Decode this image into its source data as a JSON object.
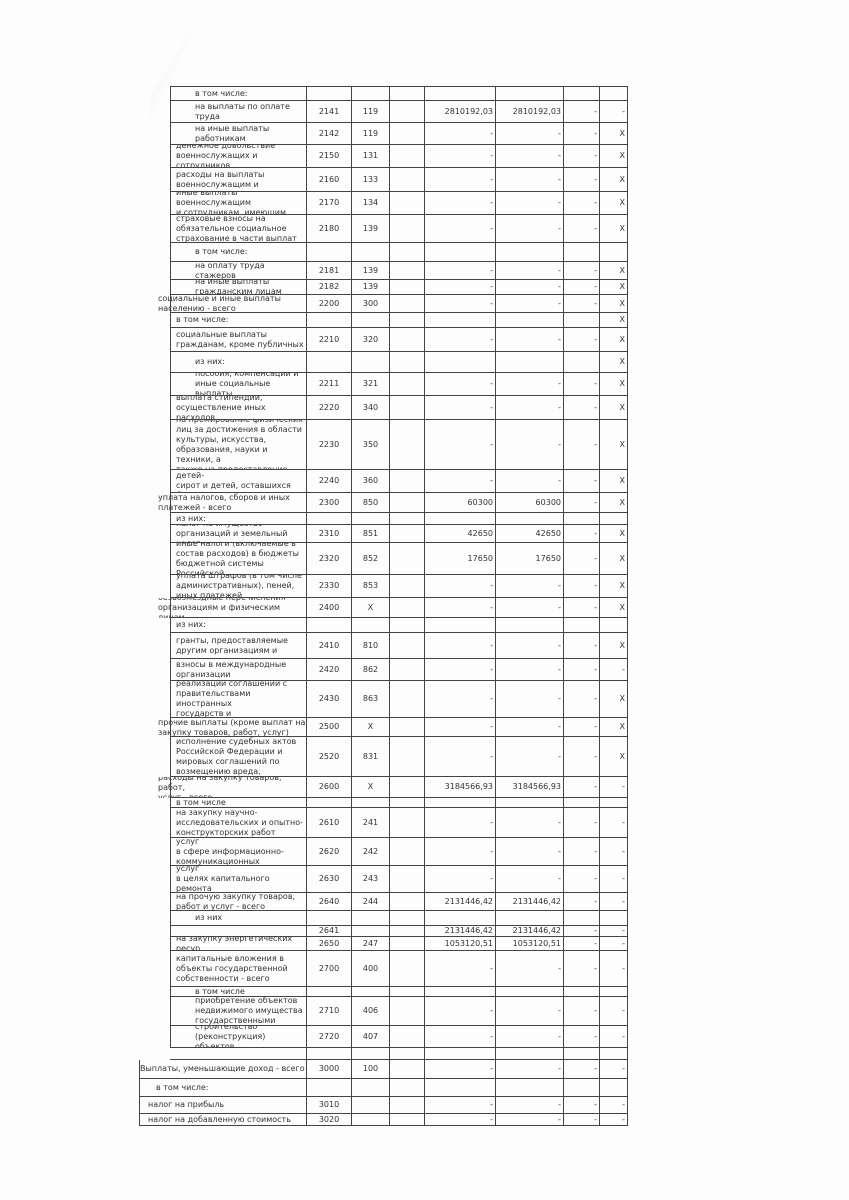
{
  "rows": [
    [
      "в том числе:",
      "",
      "",
      "",
      "",
      "",
      ""
    ],
    [
      "на выплаты по оплате\nтруда",
      "2141",
      "119",
      "2810192,03",
      "2810192,03",
      "-",
      "-"
    ],
    [
      "на иные выплаты\nработникам",
      "2142",
      "119",
      "-",
      "-",
      "-",
      "Х"
    ],
    [
      "денежное довольствие\nвоеннослужащих и сотрудников,",
      "2150",
      "131",
      "-",
      "-",
      "-",
      "Х"
    ],
    [
      "расходы на выплаты\nвоеннослужащим и",
      "2160",
      "133",
      "-",
      "-",
      "-",
      "Х"
    ],
    [
      "иные выплаты военнослужащим\nи сотрудникам, имеющим",
      "2170",
      "134",
      "-",
      "-",
      "-",
      "Х"
    ],
    [
      "страховые взносы на\nобязательное социальное\nстрахование в части выплат",
      "2180",
      "139",
      "-",
      "-",
      "-",
      "Х"
    ],
    [
      "в том числе:",
      "",
      "",
      "",
      "",
      "",
      ""
    ],
    [
      "на оплату труда стажеров",
      "2181",
      "139",
      "-",
      "-",
      "-",
      "Х"
    ],
    [
      "на иные выплаты\nгражданским лицам",
      "2182",
      "139",
      "-",
      "-",
      "-",
      "Х"
    ],
    [
      "социальные и иные выплаты\nнаселению - всего",
      "2200",
      "300",
      "-",
      "-",
      "-",
      "Х"
    ],
    [
      "в том числе:",
      "",
      "",
      "",
      "",
      "",
      "Х"
    ],
    [
      "социальные выплаты\nгражданам, кроме публичных",
      "2210",
      "320",
      "-",
      "-",
      "-",
      "Х"
    ],
    [
      "из них:",
      "",
      "",
      "",
      "",
      "",
      "Х"
    ],
    [
      "пособия, компенсации и\nиные социальные выплаты",
      "2211",
      "321",
      "-",
      "-",
      "-",
      "Х"
    ],
    [
      "выплата стипендий,\nосуществление иных расходов",
      "2220",
      "340",
      "-",
      "-",
      "-",
      "Х"
    ],
    [
      "на премирование физических\nлиц за достижения в области\nкультуры, искусства,\nобразования, науки и техники, а\nтакже на предоставление",
      "2230",
      "350",
      "-",
      "-",
      "-",
      "Х"
    ],
    [
      "социальное обеспечение детей-\nсирот и детей, оставшихся без",
      "2240",
      "360",
      "-",
      "-",
      "-",
      "Х"
    ],
    [
      "уплата налогов, сборов и иных\nплатежей - всего",
      "2300",
      "850",
      "60300",
      "60300",
      "-",
      "Х"
    ],
    [
      "из них:",
      "",
      "",
      "",
      "",
      "",
      ""
    ],
    [
      "налог на имущество\nорганизаций и земельный налог",
      "2310",
      "851",
      "42650",
      "42650",
      "-",
      "Х"
    ],
    [
      "иные налоги (включаемые в\nсостав расходов) в бюджеты\nбюджетной системы Российской",
      "2320",
      "852",
      "17650",
      "17650",
      "-",
      "Х"
    ],
    [
      "уплата штрафов (в том числе\nадминистративных), пеней,\nиных платежей",
      "2330",
      "853",
      "-",
      "-",
      "-",
      "Х"
    ],
    [
      "безвозмездные перечисления\nорганизациям и физическим лицам -",
      "2400",
      "Х",
      "-",
      "-",
      "-",
      "Х"
    ],
    [
      "из них:",
      "",
      "",
      "",
      "",
      "",
      ""
    ],
    [
      "гранты, предоставляемые\nдругим организациям и",
      "2410",
      "810",
      "-",
      "-",
      "-",
      "Х"
    ],
    [
      "взносы в международные\nорганизации",
      "2420",
      "862",
      "-",
      "-",
      "-",
      "-"
    ],
    [
      "платежи в целях обеспечения\nреализации соглашений с\nправительствами иностранных\nгосударств и международными",
      "2430",
      "863",
      "-",
      "-",
      "-",
      "Х"
    ],
    [
      "прочие выплаты (кроме выплат на\nзакупку товаров, работ, услуг)",
      "2500",
      "Х",
      "-",
      "-",
      "-",
      "Х"
    ],
    [
      "исполнение судебных актов\nРоссийской Федерации и\nмировых соглашений по\nвозмещению вреда,",
      "2520",
      "831",
      "-",
      "-",
      "-",
      "Х"
    ],
    [
      "расходы на закупку товаров, работ,\nуслуг - всего",
      "2600",
      "Х",
      "3184566,93",
      "3184566,93",
      "-",
      "-"
    ],
    [
      "в том числе",
      "",
      "",
      "",
      "",
      "",
      ""
    ],
    [
      "на закупку научно-\nисследовательских и опытно-\nконструкторских работ",
      "2610",
      "241",
      "-",
      "-",
      "-",
      "-"
    ],
    [
      "на закупку товаров, работ, услуг\nв сфере информационно-\nкоммуникационных технологий",
      "2620",
      "242",
      "-",
      "-",
      "-",
      "-"
    ],
    [
      "на закупку товаров, работ, услуг\nв целях капитального ремонта\nгосударственного имущества",
      "2630",
      "243",
      "-",
      "-",
      "-",
      "-"
    ],
    [
      "на прочую закупку товаров,\nработ и услуг - всего",
      "2640",
      "244",
      "2131446,42",
      "2131446,42",
      "-",
      "-"
    ],
    [
      "из них",
      "",
      "",
      "",
      "",
      "",
      ""
    ],
    [
      "",
      "2641",
      "",
      "2131446,42",
      "2131446,42",
      "-",
      "-"
    ],
    [
      "на закупку энергетических ресур",
      "2650",
      "247",
      "1053120,51",
      "1053120,51",
      "-",
      "-"
    ],
    [
      "капитальные вложения в\nобъекты государственной\nсобственности - всего",
      "2700",
      "400",
      "-",
      "-",
      "-",
      "-"
    ],
    [
      "в том числе",
      "",
      "",
      "",
      "",
      "",
      ""
    ],
    [
      "приобретение объектов\nнедвижимого имущества\nгосударственными",
      "2710",
      "406",
      "-",
      "-",
      "-",
      "-"
    ],
    [
      "строительство\n(реконструкция) объектов",
      "2720",
      "407",
      "-",
      "-",
      "-",
      "-"
    ],
    [
      "",
      "",
      "",
      "",
      "",
      "",
      ""
    ],
    [
      "Выплаты, уменьшающие доход - всего",
      "3000",
      "100",
      "-",
      "-",
      "-",
      "-"
    ],
    [
      "в том числе:",
      "",
      "",
      "",
      "",
      "",
      ""
    ],
    [
      "налог на прибыль",
      "3010",
      "",
      "-",
      "-",
      "-",
      "-"
    ],
    [
      "налог на добавленную стоимость",
      "3020",
      "",
      "-",
      "-",
      "-",
      "-"
    ]
  ]
}
